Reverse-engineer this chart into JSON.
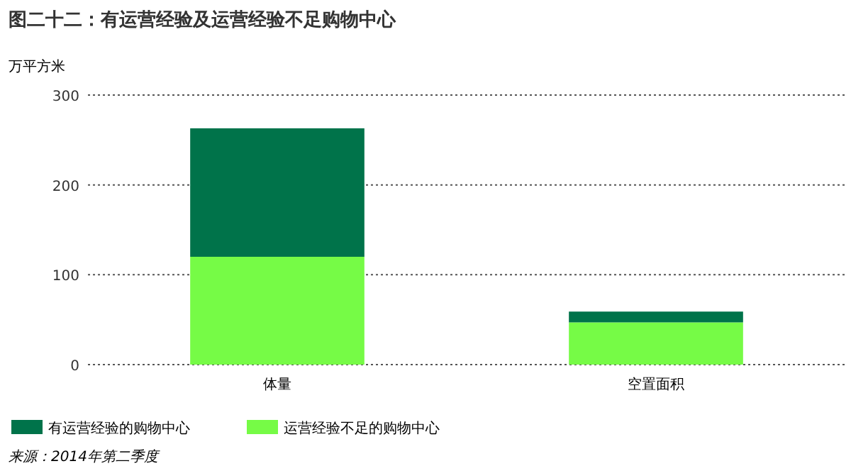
{
  "chart_data": {
    "type": "bar",
    "stacked": true,
    "title": "图二十二：有运营经验及运营经验不足购物中心",
    "ylabel": "万平方米",
    "categories": [
      "体量",
      "空置面积"
    ],
    "series": [
      {
        "name": "运营经验不足的购物中心",
        "color": "#76fb46",
        "values": [
          120,
          47
        ]
      },
      {
        "name": "有运营经验的购物中心",
        "color": "#00734a",
        "values": [
          143,
          12
        ]
      }
    ],
    "ylim": [
      0,
      300
    ],
    "yticks": [
      0,
      100,
      200,
      300
    ],
    "grid": "y",
    "legend": "bottom",
    "annotations": [
      "来源：2014年第二季度"
    ]
  }
}
